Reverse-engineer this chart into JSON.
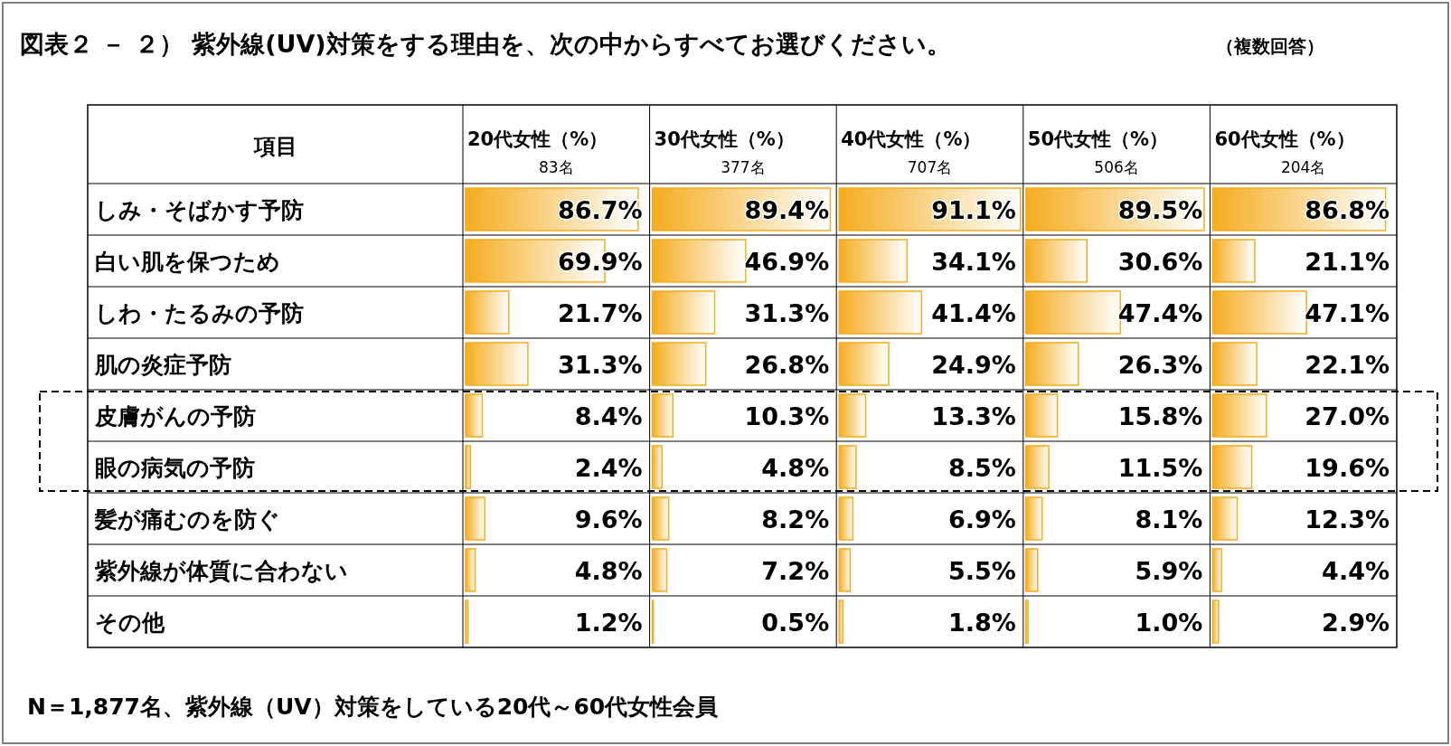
{
  "chart_data": [
    {
      "type": "bar",
      "orientation": "horizontal",
      "color": "#f5ac1e",
      "title": "20代女性（%）",
      "subtitle": "83名",
      "annotations": [
        "図表２ － ２） 紫外線(UV)対策をする理由を、次の中からすべてお選びください。",
        "（複数回答）",
        "項目",
        "N＝1,877名、紫外線（UV）対策をしている20代～60代女性会員"
      ],
      "categories": [
        "しみ・そばかす予防",
        "白い肌を保つため",
        "しわ・たるみの予防",
        "肌の炎症予防",
        "皮膚がんの予防",
        "眼の病気の予防",
        "髪が痛むのを防ぐ",
        "紫外線が体質に合わない",
        "その他"
      ],
      "values": [
        86.7,
        69.9,
        21.7,
        31.3,
        8.4,
        2.4,
        9.6,
        4.8,
        1.2
      ],
      "value_labels": [
        "86.7%",
        "69.9%",
        "21.7%",
        "31.3%",
        "8.4%",
        "2.4%",
        "9.6%",
        "4.8%",
        "1.2%"
      ]
    },
    {
      "type": "bar",
      "orientation": "horizontal",
      "color": "#f5ac1e",
      "title": "30代女性（%）",
      "subtitle": "377名",
      "values": [
        89.4,
        46.9,
        31.3,
        26.8,
        10.3,
        4.8,
        8.2,
        7.2,
        0.5
      ],
      "value_labels": [
        "89.4%",
        "46.9%",
        "31.3%",
        "26.8%",
        "10.3%",
        "4.8%",
        "8.2%",
        "7.2%",
        "0.5%"
      ]
    },
    {
      "type": "bar",
      "orientation": "horizontal",
      "color": "#f5ac1e",
      "title": "40代女性（%）",
      "subtitle": "707名",
      "values": [
        91.1,
        34.1,
        41.4,
        24.9,
        13.3,
        8.5,
        6.9,
        5.5,
        1.8
      ],
      "value_labels": [
        "91.1%",
        "34.1%",
        "41.4%",
        "24.9%",
        "13.3%",
        "8.5%",
        "6.9%",
        "5.5%",
        "1.8%"
      ]
    },
    {
      "type": "bar",
      "orientation": "horizontal",
      "color": "#f5ac1e",
      "title": "50代女性（%）",
      "subtitle": "506名",
      "values": [
        89.5,
        30.6,
        47.4,
        26.3,
        15.8,
        11.5,
        8.1,
        5.9,
        1.0
      ],
      "value_labels": [
        "89.5%",
        "30.6%",
        "47.4%",
        "26.3%",
        "15.8%",
        "11.5%",
        "8.1%",
        "5.9%",
        "1.0%"
      ]
    },
    {
      "type": "bar",
      "orientation": "horizontal",
      "color": "#f5ac1e",
      "title": "60代女性（%）",
      "subtitle": "204名",
      "values": [
        86.8,
        21.1,
        47.1,
        22.1,
        27.0,
        19.6,
        12.3,
        4.4,
        2.9
      ],
      "value_labels": [
        "86.8%",
        "21.1%",
        "47.1%",
        "22.1%",
        "27.0%",
        "19.6%",
        "12.3%",
        "4.4%",
        "2.9%"
      ]
    }
  ]
}
